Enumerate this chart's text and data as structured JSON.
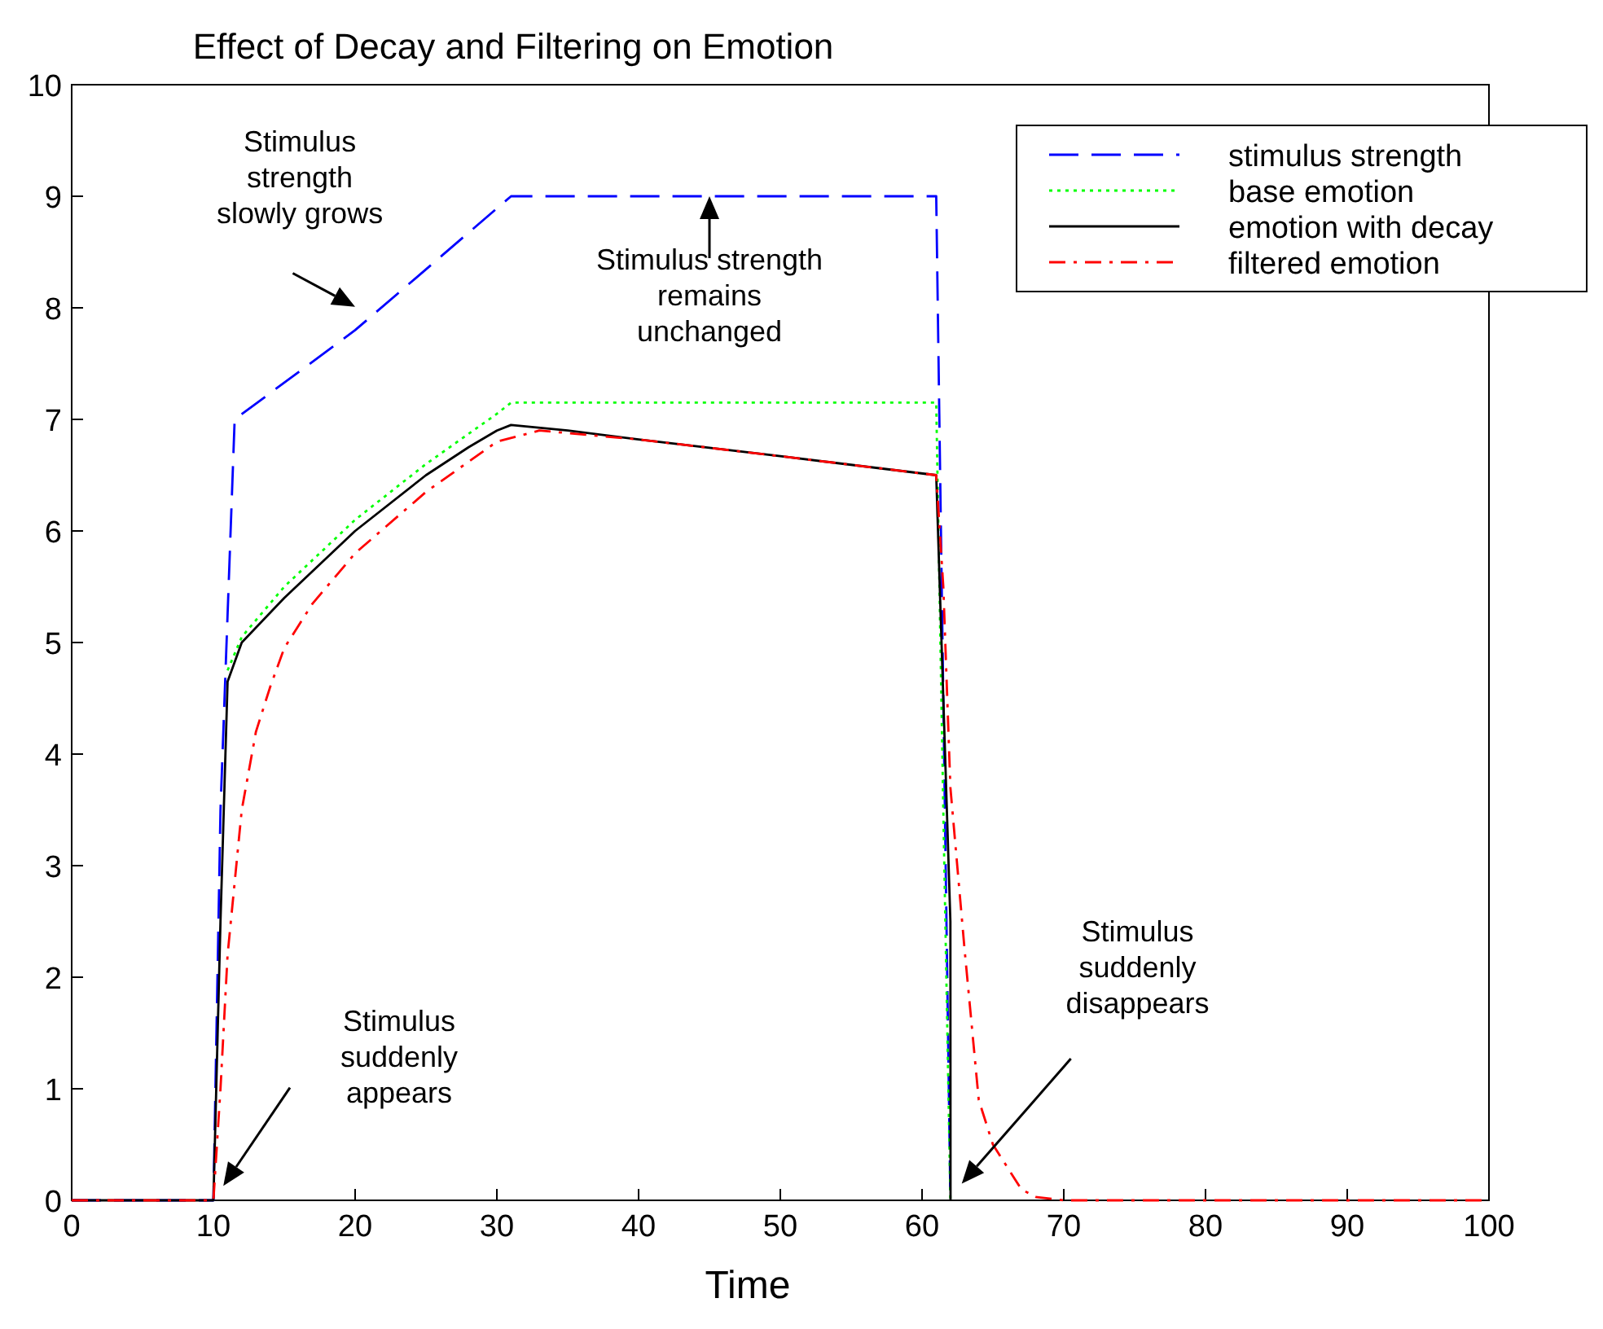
{
  "chart_data": {
    "type": "line",
    "title": "Effect of Decay and Filtering on Emotion",
    "xlabel": "Time",
    "xlim": [
      0,
      100
    ],
    "xticks": [
      0,
      10,
      20,
      30,
      40,
      50,
      60,
      70,
      80,
      90,
      100
    ],
    "ylim": [
      0,
      10
    ],
    "yticks": [
      0,
      1,
      2,
      3,
      4,
      5,
      6,
      7,
      8,
      9,
      10
    ],
    "grid": false,
    "legend": "top right",
    "marker": "none",
    "series": [
      {
        "name": "stimulus strength",
        "color": "#0000ff",
        "line_style": "dashed",
        "x": [
          0,
          10,
          10.5,
          11.5,
          20,
          31,
          61,
          61.5,
          62
        ],
        "values": [
          0,
          0,
          3.5,
          7,
          7.8,
          9,
          9,
          4.5,
          0
        ]
      },
      {
        "name": "base emotion",
        "color": "#00ff00",
        "line_style": "dotted",
        "x": [
          11,
          12,
          15,
          20,
          25,
          30,
          31,
          61,
          61.5,
          62
        ],
        "values": [
          4.75,
          5.05,
          5.5,
          6.1,
          6.6,
          7.05,
          7.15,
          7.15,
          3.5,
          0
        ]
      },
      {
        "name": "emotion with decay",
        "color": "#000000",
        "line_style": "solid",
        "x": [
          0,
          10,
          10.5,
          11,
          12,
          15,
          20,
          25,
          28,
          30,
          31,
          35,
          40,
          50,
          61,
          61.5,
          62,
          62.01
        ],
        "values": [
          0,
          0,
          2.5,
          4.65,
          5.0,
          5.4,
          6.0,
          6.5,
          6.75,
          6.9,
          6.95,
          6.9,
          6.82,
          6.67,
          6.5,
          4.5,
          2.5,
          0
        ]
      },
      {
        "name": "filtered emotion",
        "color": "#ff0000",
        "line_style": "dashdot",
        "x": [
          0,
          10,
          10.5,
          11,
          12,
          13,
          14,
          15,
          17,
          20,
          25,
          30,
          33,
          40,
          50,
          61,
          61.5,
          62,
          63,
          64,
          65,
          66,
          67,
          68,
          70,
          100
        ],
        "values": [
          0,
          0,
          1,
          2.2,
          3.5,
          4.2,
          4.6,
          4.95,
          5.35,
          5.8,
          6.35,
          6.8,
          6.9,
          6.82,
          6.67,
          6.5,
          5.5,
          3.7,
          2.25,
          0.9,
          0.5,
          0.3,
          0.1,
          0.03,
          0,
          0
        ]
      }
    ],
    "annotations": [
      "Stimulus strength slowly grows",
      {
        "text": "Stimulus strength remains unchanged",
        "x": 45,
        "y": 9
      },
      "Stimulus suddenly appears",
      "Stimulus suddenly disappears"
    ]
  }
}
